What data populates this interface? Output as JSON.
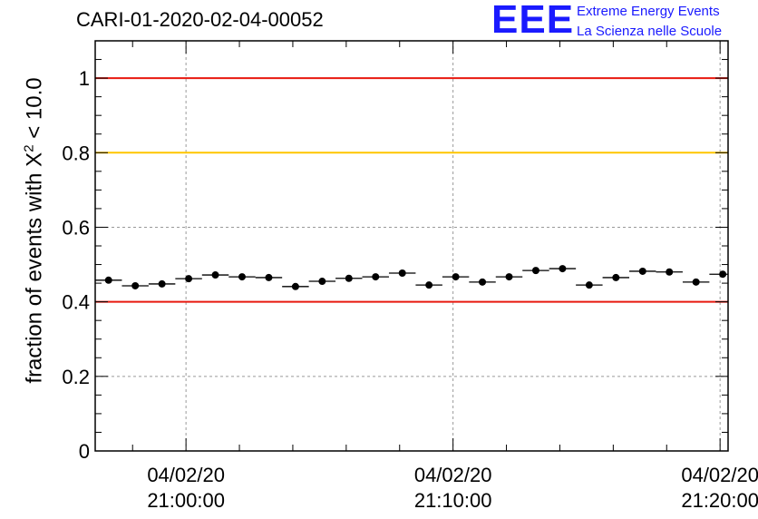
{
  "header": {
    "title": "CARI-01-2020-02-04-00052"
  },
  "logo": {
    "mark": "EEE",
    "line1": "Extreme Energy Events",
    "line2": "La Scienza nelle Scuole",
    "color": "#1a1aff"
  },
  "axis": {
    "ylabel_prefix": "fraction of events with ",
    "ylabel_symbol": "X",
    "ylabel_sup": "2",
    "ylabel_suffix": " < 10.0"
  },
  "chart_data": {
    "type": "scatter",
    "title": "CARI-01-2020-02-04-00052",
    "ylim": [
      0,
      1.1
    ],
    "yticks": [
      0,
      0.2,
      0.4,
      0.6,
      0.8,
      1
    ],
    "ytick_labels": [
      "0",
      "0.2",
      "0.4",
      "0.6",
      "0.8",
      "1"
    ],
    "xlim_minutes": [
      -3.4,
      20.3
    ],
    "xticks_minutes": [
      0,
      10,
      20
    ],
    "xtick_labels": [
      [
        "04/02/20",
        "21:00:00"
      ],
      [
        "04/02/20",
        "21:10:00"
      ],
      [
        "04/02/20",
        "21:20:00"
      ]
    ],
    "x_minutes": [
      -2.9,
      -1.9,
      -0.9,
      0.1,
      1.1,
      2.1,
      3.1,
      4.1,
      5.1,
      6.1,
      7.1,
      8.1,
      9.1,
      10.1,
      11.1,
      12.1,
      13.1,
      14.1,
      15.1,
      16.1,
      17.1,
      18.1,
      19.1,
      20.1
    ],
    "x_halfwidth_minutes": 0.5,
    "values": [
      0.458,
      0.443,
      0.448,
      0.462,
      0.472,
      0.467,
      0.465,
      0.441,
      0.455,
      0.463,
      0.467,
      0.477,
      0.445,
      0.467,
      0.453,
      0.467,
      0.484,
      0.489,
      0.445,
      0.465,
      0.482,
      0.48,
      0.453,
      0.474
    ],
    "reference_lines": [
      {
        "y": 1.0,
        "color": "#e8190f"
      },
      {
        "y": 0.8,
        "color": "#ffc600"
      },
      {
        "y": 0.4,
        "color": "#e8190f"
      }
    ],
    "grid": true
  }
}
